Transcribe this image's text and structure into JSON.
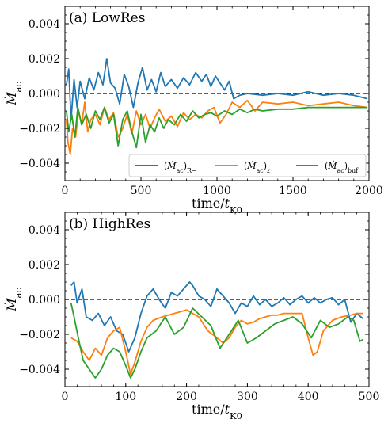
{
  "colors": {
    "R_minus": "#1f77b4",
    "z": "#ff7f0e",
    "buf": "#2ca02c",
    "zero_line": "#000000"
  },
  "chart_data": [
    {
      "type": "line",
      "panel_label": "(a) LowRes",
      "xlabel": "time/t_K0",
      "ylabel": "Ṁ_ac",
      "xlim": [
        0,
        2000
      ],
      "ylim": [
        -0.005,
        0.005
      ],
      "xticks": [
        0,
        500,
        1000,
        1500,
        2000
      ],
      "xtick_labels": [
        "0",
        "500",
        "1000",
        "1500",
        "2000"
      ],
      "yticks": [
        -0.004,
        -0.002,
        0.0,
        0.002,
        0.004
      ],
      "ytick_labels": [
        "−0.004",
        "−0.002",
        "0.000",
        "0.002",
        "0.004"
      ],
      "zero_line": {
        "y": 0.0,
        "style": "dashed"
      },
      "grid": false,
      "legend": {
        "placement": "lower-right",
        "ncol": 3
      },
      "series": [
        {
          "name": "(Ṁac)R−",
          "color_key": "R_minus",
          "x": [
            10,
            25,
            40,
            60,
            80,
            100,
            130,
            160,
            190,
            220,
            250,
            275,
            300,
            330,
            360,
            390,
            420,
            450,
            480,
            510,
            540,
            570,
            600,
            630,
            660,
            700,
            740,
            780,
            820,
            860,
            900,
            930,
            960,
            990,
            1020,
            1050,
            1080,
            1110,
            1150,
            1200,
            1300,
            1400,
            1500,
            1600,
            1700,
            1800,
            1900,
            1990
          ],
          "y": [
            0.0005,
            0.0014,
            -0.0015,
            0.0008,
            -0.0008,
            0.0007,
            -0.0003,
            0.0009,
            0.0002,
            0.0012,
            0.0005,
            0.002,
            0.0006,
            0.0003,
            -0.0006,
            0.0011,
            0.0004,
            -0.0008,
            0.0006,
            0.0015,
            0.0002,
            0.0008,
            0.0001,
            0.0012,
            0.0004,
            0.0008,
            0.0003,
            0.0009,
            0.0005,
            0.0012,
            0.0007,
            0.0011,
            0.0004,
            0.001,
            0.0006,
            0.0002,
            0.0007,
            -0.0003,
            -0.0001,
            0.0,
            -0.0001,
            0.0,
            -0.0001,
            0.0001,
            -0.0001,
            0.0,
            -0.0001,
            -0.0003
          ]
        },
        {
          "name": "(Ṁac)z",
          "color_key": "z",
          "x": [
            10,
            20,
            35,
            50,
            70,
            90,
            110,
            130,
            150,
            170,
            200,
            230,
            260,
            290,
            320,
            350,
            380,
            410,
            440,
            470,
            500,
            530,
            560,
            590,
            620,
            660,
            700,
            740,
            780,
            820,
            860,
            900,
            940,
            980,
            1020,
            1060,
            1100,
            1150,
            1200,
            1250,
            1300,
            1400,
            1500,
            1600,
            1700,
            1800,
            1900,
            1990
          ],
          "y": [
            -0.0015,
            -0.0028,
            -0.0035,
            -0.002,
            -0.0025,
            -0.001,
            -0.0018,
            -0.0005,
            -0.0022,
            -0.0015,
            -0.0012,
            -0.0018,
            -0.0008,
            -0.0015,
            -0.0011,
            -0.0025,
            -0.002,
            -0.0012,
            -0.0023,
            -0.001,
            -0.0018,
            -0.0012,
            -0.002,
            -0.0014,
            -0.0009,
            -0.0016,
            -0.0013,
            -0.0019,
            -0.0011,
            -0.0015,
            -0.0012,
            -0.0014,
            -0.001,
            -0.0008,
            -0.0017,
            -0.0012,
            -0.0005,
            -0.0008,
            -0.0004,
            -0.001,
            -0.0005,
            -0.0006,
            -0.0005,
            -0.0007,
            -0.0006,
            -0.0005,
            -0.0007,
            -0.0008
          ]
        },
        {
          "name": "(Ṁac)buf",
          "color_key": "buf",
          "x": [
            10,
            25,
            45,
            65,
            85,
            110,
            140,
            170,
            200,
            230,
            260,
            290,
            320,
            350,
            380,
            410,
            440,
            470,
            500,
            530,
            560,
            590,
            620,
            650,
            680,
            720,
            760,
            800,
            840,
            880,
            920,
            960,
            1000,
            1050,
            1100,
            1150,
            1200,
            1250,
            1300,
            1400,
            1500,
            1600,
            1700,
            1800,
            1900,
            1990
          ],
          "y": [
            -0.001,
            -0.0022,
            -0.0012,
            -0.0025,
            -0.0008,
            -0.0018,
            -0.0012,
            -0.002,
            -0.001,
            -0.0015,
            -0.0008,
            -0.0017,
            -0.0012,
            -0.003,
            -0.0015,
            -0.001,
            -0.0022,
            -0.0031,
            -0.0012,
            -0.0028,
            -0.0018,
            -0.0022,
            -0.0014,
            -0.002,
            -0.0015,
            -0.0018,
            -0.0012,
            -0.0016,
            -0.001,
            -0.0014,
            -0.0012,
            -0.0011,
            -0.0013,
            -0.001,
            -0.0012,
            -0.0009,
            -0.0011,
            -0.0009,
            -0.001,
            -0.0009,
            -0.0009,
            -0.0008,
            -0.0008,
            -0.0008,
            -0.0008,
            -0.0008
          ]
        }
      ]
    },
    {
      "type": "line",
      "panel_label": "(b) HighRes",
      "xlabel": "time/t_K0",
      "ylabel": "Ṁ_ac",
      "xlim": [
        0,
        500
      ],
      "ylim": [
        -0.005,
        0.005
      ],
      "xticks": [
        0,
        100,
        200,
        300,
        400,
        500
      ],
      "xtick_labels": [
        "0",
        "100",
        "200",
        "300",
        "400",
        "500"
      ],
      "yticks": [
        -0.004,
        -0.002,
        0.0,
        0.002,
        0.004
      ],
      "ytick_labels": [
        "−0.004",
        "−0.002",
        "0.000",
        "0.002",
        "0.004"
      ],
      "zero_line": {
        "y": 0.0,
        "style": "dashed"
      },
      "grid": false,
      "series": [
        {
          "name": "(Ṁac)R−",
          "color_key": "R_minus",
          "x": [
            10,
            15,
            20,
            28,
            35,
            45,
            55,
            65,
            75,
            85,
            95,
            105,
            115,
            125,
            135,
            145,
            155,
            165,
            175,
            185,
            195,
            205,
            210,
            220,
            230,
            240,
            250,
            260,
            270,
            280,
            290,
            300,
            310,
            320,
            330,
            340,
            350,
            360,
            370,
            380,
            390,
            400,
            410,
            420,
            430,
            440,
            450,
            460,
            470,
            480,
            490
          ],
          "y": [
            0.0008,
            0.001,
            -0.0002,
            0.0006,
            -0.001,
            -0.0012,
            -0.0008,
            -0.0015,
            -0.001,
            -0.0018,
            -0.002,
            -0.003,
            -0.0022,
            -0.0008,
            0.0002,
            0.0006,
            0.0,
            -0.0005,
            0.0004,
            0.0002,
            0.0006,
            0.001,
            0.0008,
            0.0002,
            0.0,
            -0.0004,
            0.0006,
            0.0002,
            -0.0002,
            -0.0008,
            -0.0002,
            -0.0004,
            0.0002,
            -0.0003,
            0.0,
            -0.0004,
            -0.0002,
            0.0001,
            -0.0003,
            0.0,
            0.0002,
            -0.0002,
            0.0001,
            -0.0002,
            0.0,
            0.0001,
            -0.0003,
            0.0,
            -0.0013,
            -0.0008,
            -0.0011
          ]
        },
        {
          "name": "(Ṁac)z",
          "color_key": "z",
          "x": [
            10,
            20,
            30,
            40,
            50,
            60,
            70,
            80,
            90,
            100,
            108,
            115,
            125,
            135,
            145,
            160,
            180,
            200,
            220,
            235,
            250,
            260,
            270,
            280,
            290,
            300,
            310,
            320,
            330,
            340,
            350,
            360,
            370,
            380,
            390,
            400,
            408,
            415,
            425,
            440,
            455,
            470,
            480,
            490
          ],
          "y": [
            -0.0022,
            -0.0024,
            -0.003,
            -0.0035,
            -0.0028,
            -0.0032,
            -0.0022,
            -0.0018,
            -0.0016,
            -0.003,
            -0.0043,
            -0.0036,
            -0.0024,
            -0.0016,
            -0.0012,
            -0.001,
            -0.0008,
            -0.0006,
            -0.001,
            -0.0018,
            -0.0022,
            -0.0025,
            -0.0022,
            -0.0016,
            -0.0012,
            -0.0014,
            -0.0013,
            -0.0011,
            -0.001,
            -0.0009,
            -0.0009,
            -0.0008,
            -0.0008,
            -0.0008,
            -0.0008,
            -0.0022,
            -0.0032,
            -0.003,
            -0.0018,
            -0.0012,
            -0.001,
            -0.0009,
            -0.0008,
            -0.0008
          ]
        },
        {
          "name": "(Ṁac)buf",
          "color_key": "buf",
          "x": [
            10,
            15,
            22,
            30,
            40,
            50,
            60,
            70,
            80,
            90,
            100,
            108,
            115,
            125,
            135,
            150,
            165,
            180,
            195,
            210,
            225,
            240,
            255,
            270,
            285,
            300,
            315,
            330,
            345,
            360,
            375,
            390,
            405,
            420,
            435,
            450,
            465,
            475,
            485,
            490
          ],
          "y": [
            -0.0002,
            -0.001,
            -0.0022,
            -0.0035,
            -0.004,
            -0.0045,
            -0.004,
            -0.0032,
            -0.0028,
            -0.003,
            -0.0038,
            -0.0045,
            -0.004,
            -0.003,
            -0.0022,
            -0.0018,
            -0.001,
            -0.002,
            -0.0016,
            -0.0005,
            -0.001,
            -0.0015,
            -0.0028,
            -0.002,
            -0.0012,
            -0.0025,
            -0.0022,
            -0.0018,
            -0.0014,
            -0.0012,
            -0.001,
            -0.0014,
            -0.0022,
            -0.0012,
            -0.0016,
            -0.0014,
            -0.001,
            -0.0012,
            -0.0024,
            -0.0023
          ]
        }
      ]
    }
  ]
}
